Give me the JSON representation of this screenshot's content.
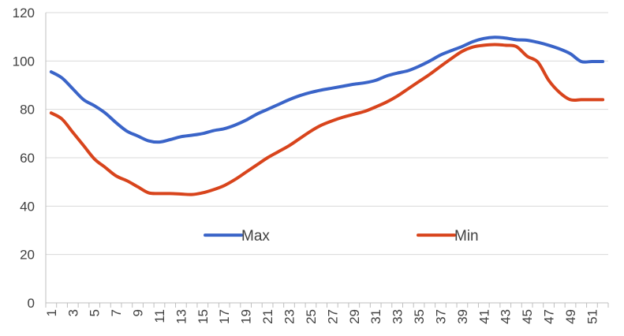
{
  "chart_data": {
    "type": "line",
    "title": "",
    "xlabel": "",
    "ylabel": "",
    "x": [
      1,
      2,
      3,
      4,
      5,
      6,
      7,
      8,
      9,
      10,
      11,
      12,
      13,
      14,
      15,
      16,
      17,
      18,
      19,
      20,
      21,
      22,
      23,
      24,
      25,
      26,
      27,
      28,
      29,
      30,
      31,
      32,
      33,
      34,
      35,
      36,
      37,
      38,
      39,
      40,
      41,
      42,
      43,
      44,
      45,
      46,
      47,
      48,
      49,
      50,
      51,
      52
    ],
    "x_tick_labels": [
      "1",
      "3",
      "5",
      "7",
      "9",
      "11",
      "13",
      "15",
      "17",
      "19",
      "21",
      "23",
      "25",
      "27",
      "29",
      "31",
      "33",
      "35",
      "37",
      "39",
      "41",
      "43",
      "45",
      "47",
      "49",
      "51"
    ],
    "ylim": [
      0,
      120
    ],
    "y_ticks": [
      0,
      20,
      40,
      60,
      80,
      100,
      120
    ],
    "grid": "horizontal",
    "legend_position": "center",
    "series": [
      {
        "name": "Max",
        "color": "#3a64c8",
        "values": [
          95.5,
          93,
          88.5,
          84,
          81.5,
          78.5,
          74.5,
          71,
          69,
          67,
          66.5,
          67.5,
          68.7,
          69.3,
          70,
          71.2,
          72,
          73.5,
          75.5,
          78,
          80,
          82,
          84,
          85.7,
          87,
          88,
          88.8,
          89.6,
          90.4,
          91,
          92,
          93.8,
          95,
          96,
          97.8,
          100,
          102.5,
          104.3,
          106,
          108,
          109.3,
          109.8,
          109.5,
          108.8,
          108.6,
          107.7,
          106.5,
          105,
          103,
          99.8,
          99.8,
          99.8
        ]
      },
      {
        "name": "Min",
        "color": "#d8441c",
        "values": [
          78.5,
          76,
          70.5,
          65,
          59.5,
          56,
          52.5,
          50.5,
          48,
          45.5,
          45.2,
          45.2,
          45,
          44.8,
          45.5,
          46.8,
          48.5,
          51,
          54,
          57,
          60,
          62.5,
          65,
          68,
          71,
          73.5,
          75.3,
          76.8,
          78,
          79.2,
          81,
          83,
          85.5,
          88.5,
          91.5,
          94.5,
          97.8,
          101,
          104,
          105.8,
          106.5,
          106.8,
          106.5,
          106,
          102,
          99.5,
          92,
          87,
          84,
          84,
          84,
          84
        ]
      }
    ]
  }
}
